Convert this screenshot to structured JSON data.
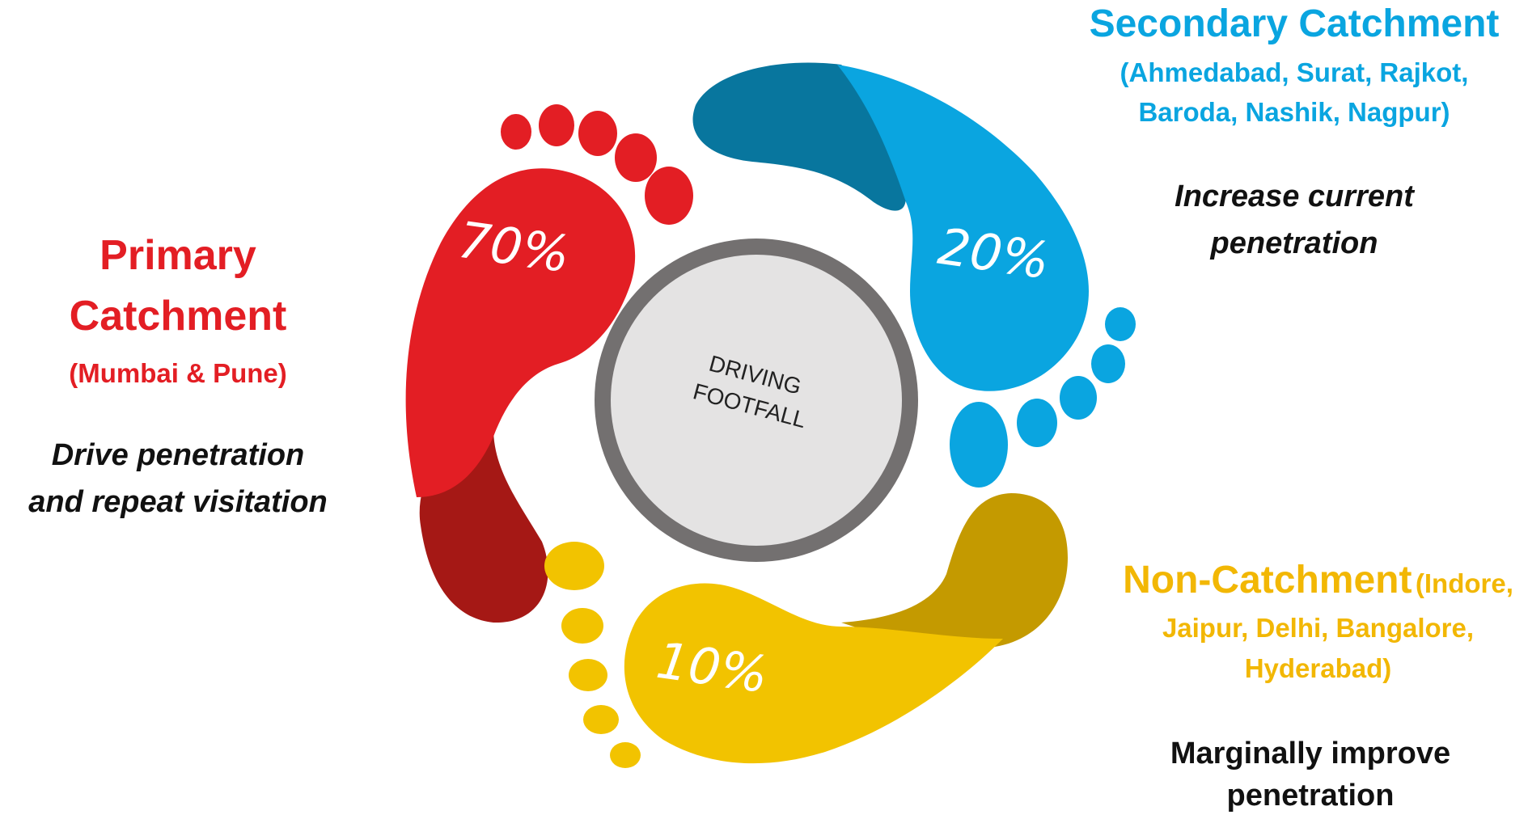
{
  "center": {
    "line1": "DRIVING",
    "line2": "FOOTFALL"
  },
  "primary": {
    "title_line1": "Primary",
    "title_line2": "Catchment",
    "cities": "(Mumbai & Pune)",
    "goal_line1": "Drive penetration",
    "goal_line2": "and repeat visitation",
    "share": "70%",
    "color": "#e31e24",
    "heel_color": "#a51815"
  },
  "secondary": {
    "title": "Secondary Catchment",
    "cities_line1": "(Ahmedabad, Surat, Rajkot,",
    "cities_line2": "Baroda, Nashik, Nagpur)",
    "goal_line1": "Increase current",
    "goal_line2": "penetration",
    "share": "20%",
    "color": "#0aa5e0",
    "heel_color": "#08769e"
  },
  "non": {
    "title": "Non-Catchment",
    "cities_inline": "(Indore,",
    "cities_line2": "Jaipur, Delhi, Bangalore,",
    "cities_line3": "Hyderabad)",
    "goal_line1": "Marginally improve",
    "goal_line2": "penetration",
    "share": "10%",
    "color": "#f2c300",
    "heel_color": "#c49a00"
  }
}
